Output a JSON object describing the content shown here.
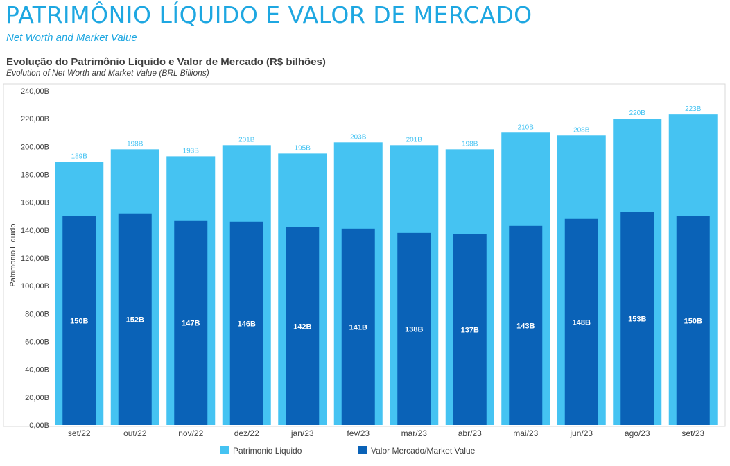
{
  "header": {
    "title": "PATRIMÔNIO LÍQUIDO E VALOR DE MERCADO",
    "subtitle": "Net Worth and Market Value"
  },
  "chart_data": {
    "type": "bar",
    "title": "Evolução do Patrimônio Líquido e Valor de Mercado (R$ bilhões)",
    "subtitle": "Evolution of Net Worth and Market Value (BRL Billions)",
    "ylabel": "Patrimonio Liquido",
    "xlabel": "",
    "ylim": [
      0,
      240
    ],
    "yticks": [
      0,
      20,
      40,
      60,
      80,
      100,
      120,
      140,
      160,
      180,
      200,
      220,
      240
    ],
    "ytick_labels": [
      "0,00B",
      "20,00B",
      "40,00B",
      "60,00B",
      "80,00B",
      "100,00B",
      "120,00B",
      "140,00B",
      "160,00B",
      "180,00B",
      "200,00B",
      "220,00B",
      "240,00B"
    ],
    "categories": [
      "set/22",
      "out/22",
      "nov/22",
      "dez/22",
      "jan/23",
      "fev/23",
      "mar/23",
      "abr/23",
      "mai/23",
      "jun/23",
      "ago/23",
      "set/23"
    ],
    "legend_position": "bottom",
    "grid": false,
    "series": [
      {
        "name": "Patrimonio Liquido",
        "color": "#45c3f2",
        "values": [
          189,
          198,
          193,
          201,
          195,
          203,
          201,
          198,
          210,
          208,
          220,
          223
        ],
        "labels": [
          "189B",
          "198B",
          "193B",
          "201B",
          "195B",
          "203B",
          "201B",
          "198B",
          "210B",
          "208B",
          "220B",
          "223B"
        ]
      },
      {
        "name": "Valor Mercado/Market Value",
        "color": "#0a62b7",
        "values": [
          150,
          152,
          147,
          146,
          142,
          141,
          138,
          137,
          143,
          148,
          153,
          150
        ],
        "labels": [
          "150B",
          "152B",
          "147B",
          "146B",
          "142B",
          "141B",
          "138B",
          "137B",
          "143B",
          "148B",
          "153B",
          "150B"
        ]
      }
    ]
  }
}
